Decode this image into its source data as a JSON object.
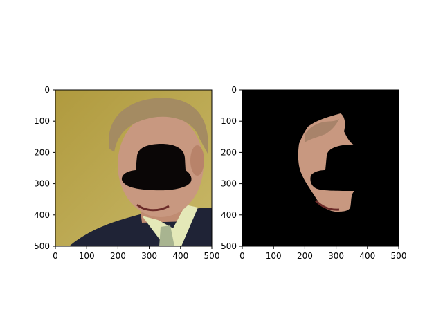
{
  "figure": {
    "panels": [
      {
        "name": "original-image-panel",
        "description_key": "left",
        "xticks": [
          "0",
          "100",
          "200",
          "300",
          "400",
          "500"
        ],
        "yticks": [
          "0",
          "100",
          "200",
          "300",
          "400",
          "500"
        ],
        "xlim": [
          0,
          500
        ],
        "ylim": [
          0,
          500
        ]
      },
      {
        "name": "masked-face-panel",
        "description_key": "right",
        "xticks": [
          "0",
          "100",
          "200",
          "300",
          "400",
          "500"
        ],
        "yticks": [
          "0",
          "100",
          "200",
          "300",
          "400",
          "500"
        ],
        "xlim": [
          0,
          500
        ],
        "ylim": [
          0,
          500
        ]
      }
    ]
  },
  "colors": {
    "background_wall": "#b6a24a",
    "mask": "#0a0606",
    "skin": "#c89880",
    "hair": "#a48b62",
    "suit": "#1f2336",
    "shirt": "#e4e8b8",
    "tie": "#a8b490",
    "black_bg": "#000000"
  }
}
